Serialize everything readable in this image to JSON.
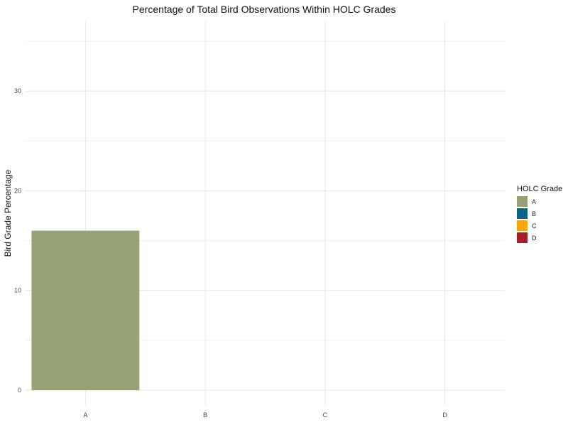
{
  "chart_data": {
    "type": "bar",
    "title": "Percentage of Total Bird Observations Within HOLC Grades",
    "xlabel": "",
    "ylabel": "Bird Grade Percentage",
    "categories": [
      "A",
      "B",
      "C",
      "D"
    ],
    "values": [
      16,
      0,
      0,
      0
    ],
    "colors": [
      "#96a273",
      "#0e6587",
      "#f7a50a",
      "#a71b2a"
    ],
    "ylim": [
      -1.5,
      37
    ],
    "yticks": [
      0,
      10,
      20,
      30
    ],
    "grid": true,
    "legend": {
      "title": "HOLC Grade",
      "position": "right",
      "entries": [
        "A",
        "B",
        "C",
        "D"
      ]
    }
  }
}
